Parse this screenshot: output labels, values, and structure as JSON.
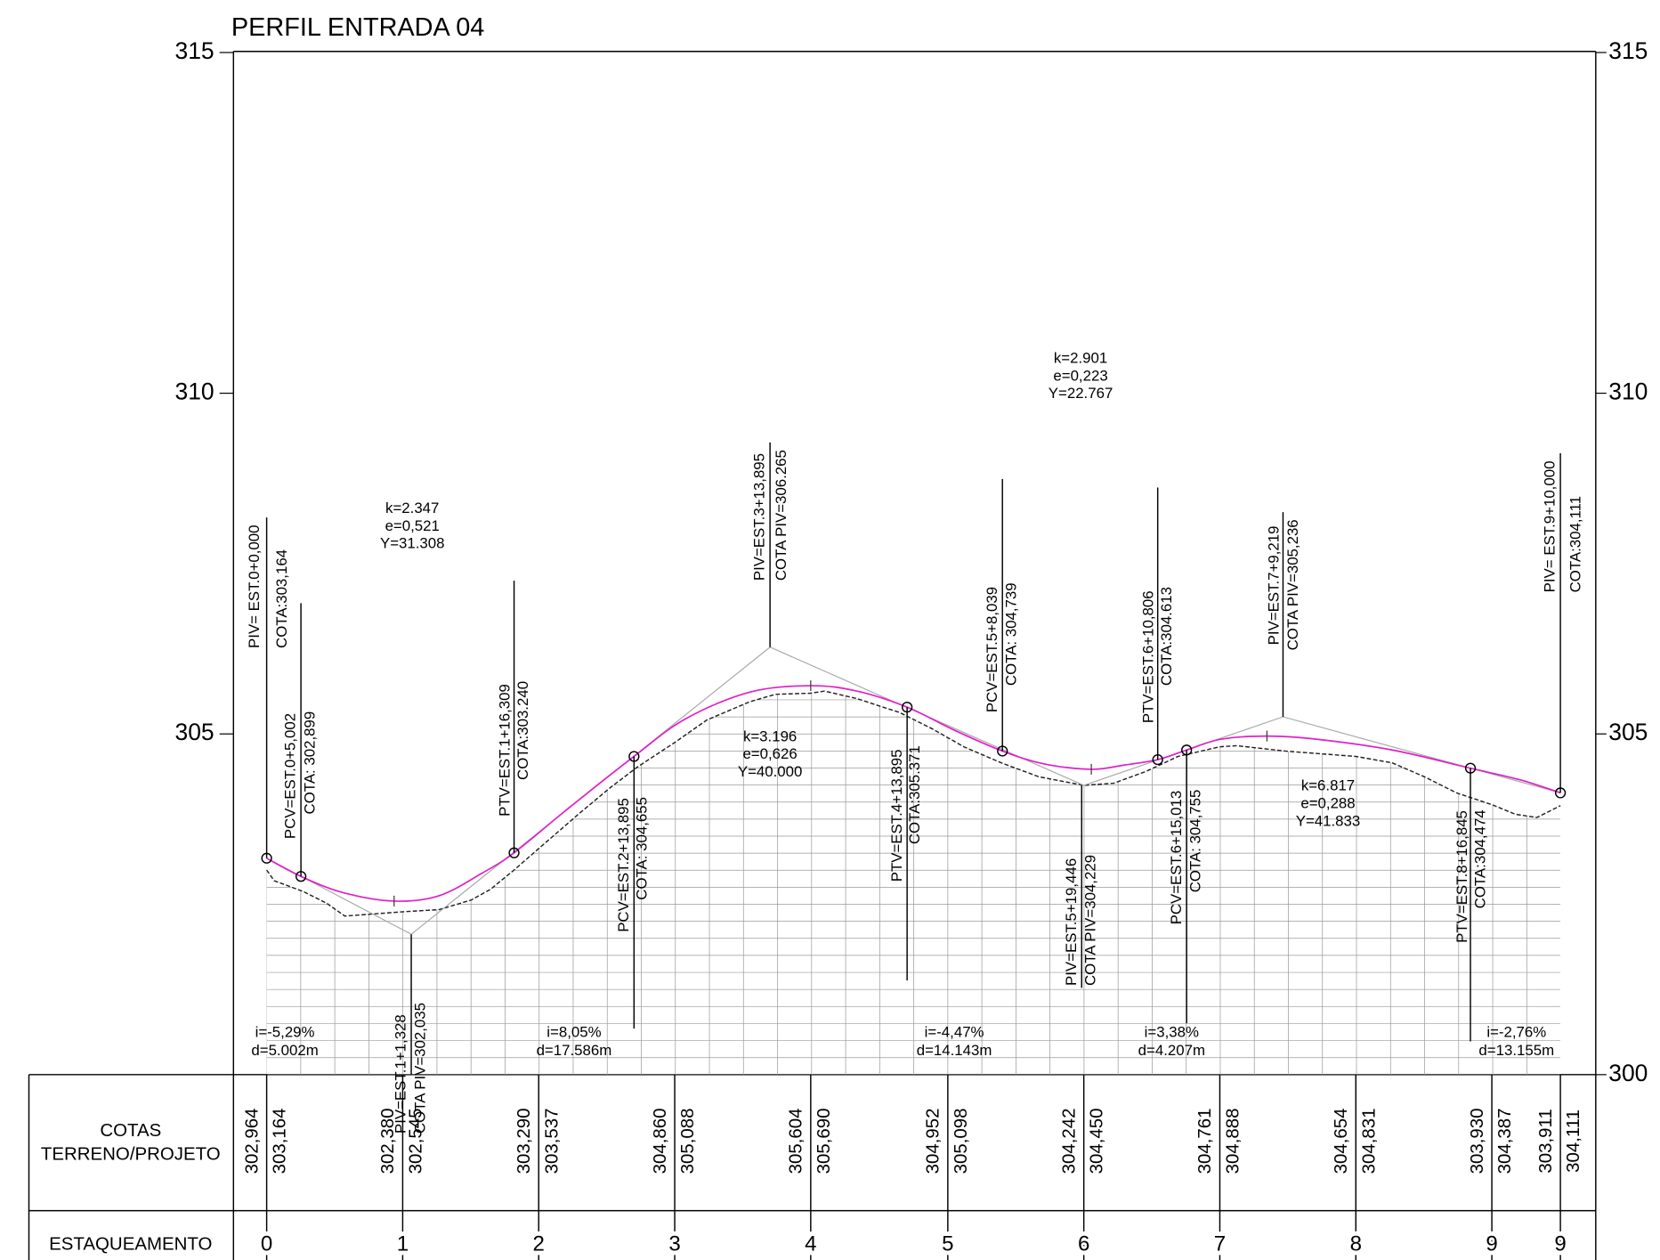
{
  "title": "PERFIL ENTRADA 04",
  "axis": {
    "left_ticks": [
      315,
      310,
      305
    ],
    "right_ticks": [
      315,
      310,
      305,
      300
    ]
  },
  "annotations": [
    [
      "PIV= EST.0+0,000",
      "COTA:303,164"
    ],
    [
      "PCV=EST.0+5,002",
      "COTA: 302,899"
    ],
    [
      "PTV=EST.1+16,309",
      "COTA:303.240"
    ],
    [
      "PCV=EST.2+13,895",
      "COTA: 304,655"
    ],
    [
      "PIV=EST.3+13,895",
      "COTA PIV=306.265"
    ],
    [
      "PTV=EST.4+13,895",
      "COTA:305.371"
    ],
    [
      "PCV=EST.5+8,039",
      "COTA: 304,739"
    ],
    [
      "PIV=EST.5+19,446",
      "COTA PIV=304,229"
    ],
    [
      "PTV=EST.6+10,806",
      "COTA:304.613"
    ],
    [
      "PCV=EST.6+15,013",
      "COTA: 304,755"
    ],
    [
      "PIV=EST.7+9,219",
      "COTA PIV=305,236"
    ],
    [
      "PTV=EST.8+16,845",
      "COTA:304,474"
    ],
    [
      "PIV= EST.9+10,000",
      "COTA:304,111"
    ],
    [
      "PIV=EST.1+1,328",
      "COTA PIV=302,035"
    ]
  ],
  "curves": [
    [
      "k=2.347",
      "e=0,521",
      "Y=31.308"
    ],
    [
      "k=3.196",
      "e=0,626",
      "Y=40.000"
    ],
    [
      "k=2.901",
      "e=0,223",
      "Y=22.767"
    ],
    [
      "k=6.817",
      "e=0,288",
      "Y=41.833"
    ]
  ],
  "slopes": [
    [
      "i=-5,29%",
      "d=5.002m"
    ],
    [
      "i=8,05%",
      "d=17.586m"
    ],
    [
      "i=-4,47%",
      "d=14.143m"
    ],
    [
      "i=3,38%",
      "d=4.207m"
    ],
    [
      "i=-2,76%",
      "d=13.155m"
    ]
  ],
  "table": {
    "cotas_label": [
      "COTAS",
      "TERRENO/PROJETO"
    ],
    "stations_label": "ESTAQUEAMENTO",
    "cotas": [
      [
        "302,964",
        "303,164"
      ],
      [
        "302,380",
        "302,545"
      ],
      [
        "303,290",
        "303,537"
      ],
      [
        "304,860",
        "305,088"
      ],
      [
        "305,604",
        "305,690"
      ],
      [
        "304,952",
        "305,098"
      ],
      [
        "304,242",
        "304,450"
      ],
      [
        "304,761",
        "304,888"
      ],
      [
        "304,654",
        "304,831"
      ],
      [
        "303,930",
        "304,387"
      ],
      [
        "303,911",
        "304,111"
      ]
    ],
    "stations": [
      "0",
      "1",
      "2",
      "3",
      "4",
      "5",
      "6",
      "7",
      "8",
      "9",
      "9"
    ]
  }
}
